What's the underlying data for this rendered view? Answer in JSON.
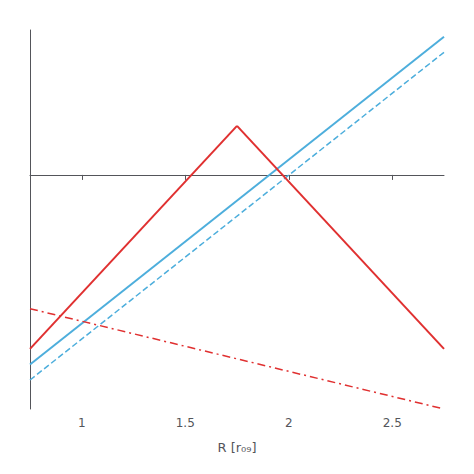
{
  "chart_data": {
    "type": "line",
    "xlabel": "R [r₀₉]",
    "xlim": [
      0.75,
      2.75
    ],
    "xticks": [
      1,
      1.5,
      2,
      2.5
    ],
    "ylim": [
      -1.05,
      0.65
    ],
    "tick_labels": "x",
    "grid": false,
    "series": [
      {
        "color": "#4DAEDC",
        "line_style": "solid",
        "x": [
          0.75,
          2.75
        ],
        "values": [
          -0.85,
          0.62
        ]
      },
      {
        "color": "#4DAEDC",
        "line_style": "dashed",
        "x": [
          0.75,
          2.75
        ],
        "values": [
          -0.92,
          0.55
        ]
      },
      {
        "color": "#E03030",
        "line_style": "solid",
        "x": [
          0.75,
          1.75
        ],
        "values": [
          -0.78,
          0.22
        ]
      },
      {
        "color": "#E03030",
        "line_style": "solid",
        "x": [
          1.75,
          2.75
        ],
        "values": [
          0.22,
          -0.78
        ]
      },
      {
        "color": "#E03030",
        "line_style": "dashdot",
        "x": [
          0.75,
          2.75
        ],
        "values": [
          -0.6,
          -1.05
        ]
      }
    ]
  }
}
